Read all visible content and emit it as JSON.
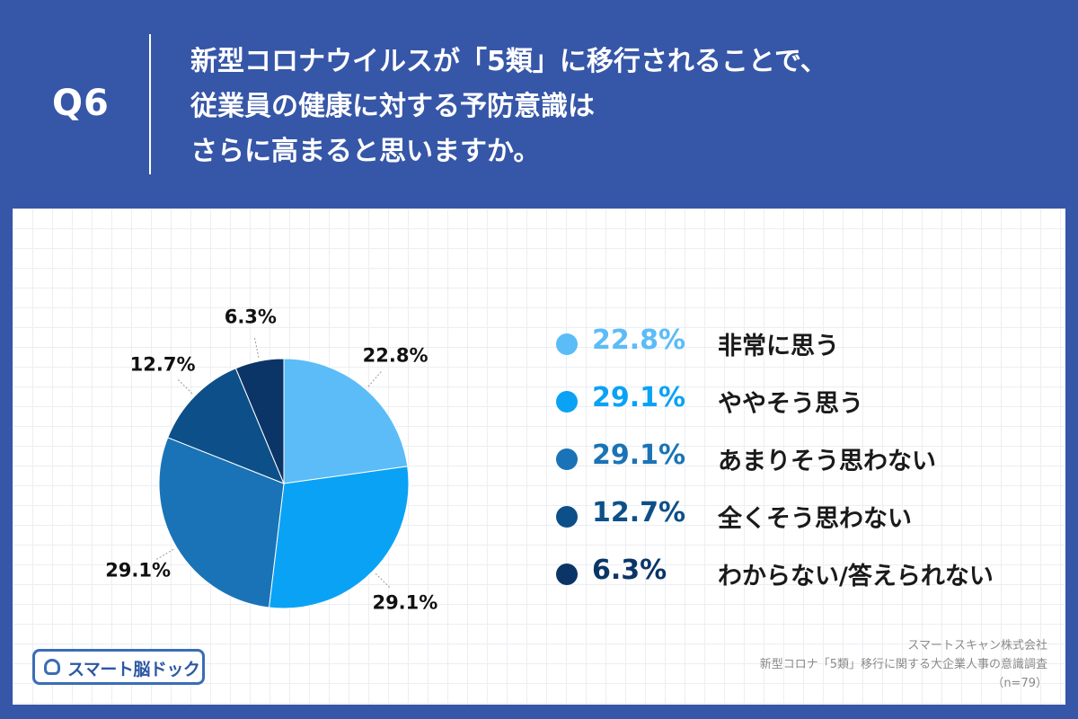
{
  "header": {
    "question_number": "Q6",
    "question_lines": [
      "新型コロナウイルスが「5類」に移行されることで、",
      "従業員の健康に対する予防意識は",
      "さらに高まると思いますか。"
    ]
  },
  "colors": {
    "header_background": "#3656a8",
    "series": [
      "#5bbcf7",
      "#0aa2f5",
      "#1a73b6",
      "#0d4f88",
      "#0b3566"
    ]
  },
  "chart_data": {
    "type": "pie",
    "categories": [
      "非常に思う",
      "ややそう思う",
      "あまりそう思わない",
      "全くそう思わない",
      "わからない/答えられない"
    ],
    "values": [
      22.8,
      29.1,
      29.1,
      12.7,
      6.3
    ],
    "value_labels": [
      "22.8%",
      "29.1%",
      "29.1%",
      "12.7%",
      "6.3%"
    ],
    "legend_placement": "right"
  },
  "legend": [
    {
      "pct": "22.8%",
      "label": "非常に思う"
    },
    {
      "pct": "29.1%",
      "label": "ややそう思う"
    },
    {
      "pct": "29.1%",
      "label": "あまりそう思わない"
    },
    {
      "pct": "12.7%",
      "label": "全くそう思わない"
    },
    {
      "pct": "6.3%",
      "label": "わからない/答えられない"
    }
  ],
  "logo": {
    "text": "スマート脳ドック",
    "icon": "brain-dock-icon"
  },
  "source": {
    "company": "スマートスキャン株式会社",
    "survey": "新型コロナ「5類」移行に関する大企業人事の意識調査",
    "sample": "（n=79）"
  }
}
